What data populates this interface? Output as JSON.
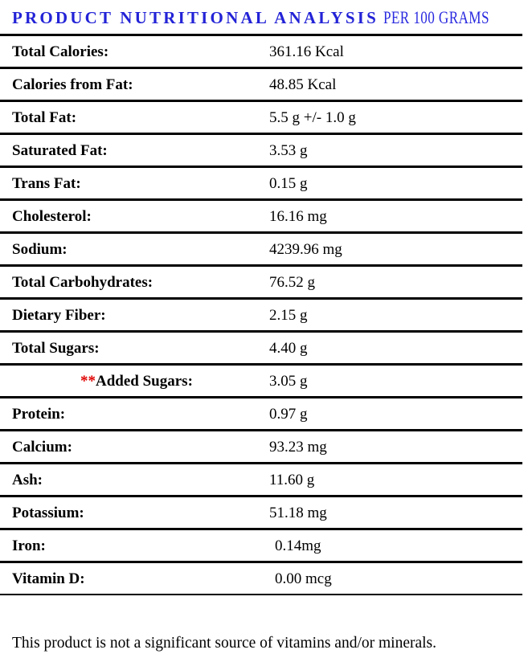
{
  "title": {
    "main": "PRODUCT NUTRITIONAL ANALYSIS",
    "suffix": "PER 100 GRAMS"
  },
  "colors": {
    "title_blue": "#2323D7",
    "asterisk_red": "#E00000",
    "rule_black": "#000000"
  },
  "rows": [
    {
      "label": "Total Calories:",
      "value": "361.16 Kcal"
    },
    {
      "label": "Calories from Fat:",
      "value": "48.85 Kcal"
    },
    {
      "label": "Total Fat:",
      "value": "5.5 g +/- 1.0 g"
    },
    {
      "label": "Saturated Fat:",
      "value": "3.53 g"
    },
    {
      "label": "Trans Fat:",
      "value": "0.15 g"
    },
    {
      "label": "Cholesterol:",
      "value": "16.16 mg"
    },
    {
      "label": "Sodium:",
      "value": "4239.96 mg"
    },
    {
      "label": "Total Carbohydrates:",
      "value": "76.52 g"
    },
    {
      "label": "Dietary Fiber:",
      "value": "2.15 g"
    },
    {
      "label": "Total Sugars:",
      "value": "4.40 g"
    },
    {
      "label": "Added Sugars:",
      "prefix": "**",
      "indent": true,
      "value": "3.05 g"
    },
    {
      "label": "Protein:",
      "value": "0.97 g"
    },
    {
      "label": "Calcium:",
      "value": "93.23 mg"
    },
    {
      "label": "Ash:",
      "value": "11.60 g"
    },
    {
      "label": "Potassium:",
      "value": "51.18 mg"
    },
    {
      "label": "Iron:",
      "value": "0.14mg",
      "value_indent": true
    },
    {
      "label": "Vitamin D:",
      "value": "0.00 mcg",
      "value_indent": true
    }
  ],
  "footer": "This product is not a significant source of vitamins and/or minerals."
}
